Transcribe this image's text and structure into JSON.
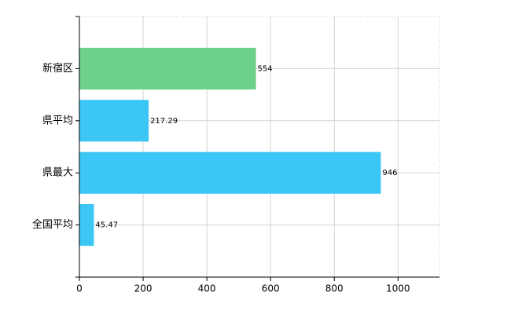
{
  "chart_data": {
    "type": "barh",
    "categories": [
      "新宿区",
      "県平均",
      "県最大",
      "全国平均"
    ],
    "values": [
      554,
      217.29,
      946,
      45.47
    ],
    "colors": [
      "#6dd18a",
      "#3cc6f6",
      "#3cc6f6",
      "#3cc6f6"
    ],
    "xlim": [
      0,
      1130
    ],
    "xticks": [
      0,
      200,
      400,
      600,
      800,
      1000
    ],
    "grid": true
  }
}
